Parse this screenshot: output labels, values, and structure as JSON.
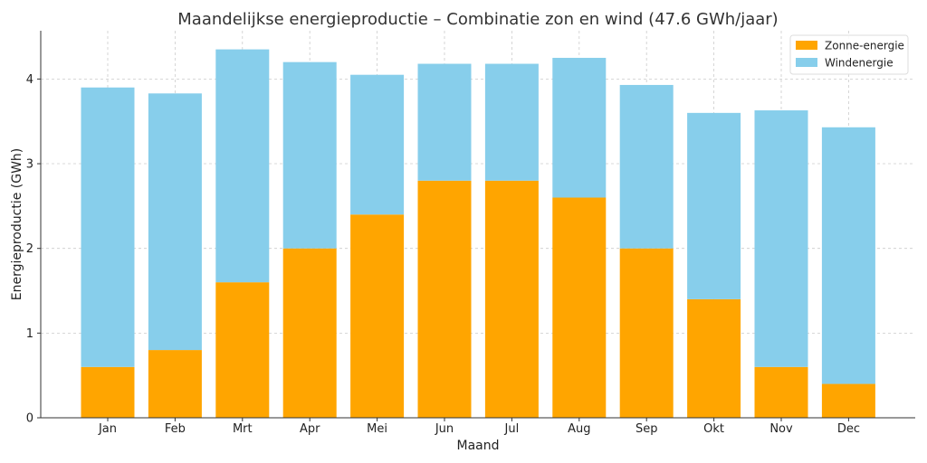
{
  "chart_data": {
    "type": "bar",
    "stacked": true,
    "title": "Maandelijkse energieproductie – Combinatie zon en wind (47.6 GWh/jaar)",
    "xlabel": "Maand",
    "ylabel": "Energieproductie (GWh)",
    "categories": [
      "Jan",
      "Feb",
      "Mrt",
      "Apr",
      "Mei",
      "Jun",
      "Jul",
      "Aug",
      "Sep",
      "Okt",
      "Nov",
      "Dec"
    ],
    "series": [
      {
        "name": "Zonne-energie",
        "color": "#FFA500",
        "values": [
          0.6,
          0.8,
          1.6,
          2.0,
          2.4,
          2.8,
          2.8,
          2.6,
          2.0,
          1.4,
          0.6,
          0.4
        ]
      },
      {
        "name": "Windenergie",
        "color": "#87CEEB",
        "values": [
          3.3,
          3.03,
          2.75,
          2.2,
          1.65,
          1.38,
          1.38,
          1.65,
          1.93,
          2.2,
          3.03,
          3.03
        ]
      }
    ],
    "ylim": [
      0,
      4.57
    ],
    "yticks": [
      0,
      1,
      2,
      3,
      4
    ],
    "grid": true,
    "legend_position": "top-right"
  }
}
